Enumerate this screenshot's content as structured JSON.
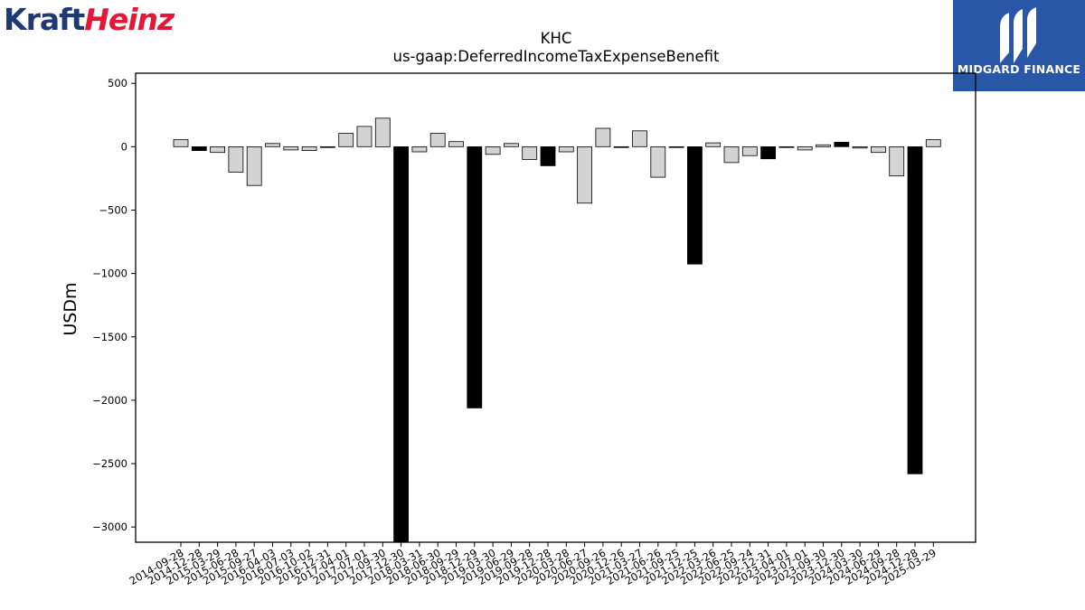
{
  "branding": {
    "company_logo_part1": "Kraft",
    "company_logo_part2": "Heinz",
    "publisher": "MIDGARD FINANCE",
    "colors": {
      "kraft_blue": "#1f3a73",
      "heinz_red": "#e31837",
      "publisher_blue": "#2a56a8"
    }
  },
  "chart_data": {
    "type": "bar",
    "title": "KHC",
    "subtitle": "us-gaap:DeferredIncomeTaxExpenseBenefit",
    "ylabel": "USDm",
    "xlabel": "",
    "ylim": [
      -3120,
      580
    ],
    "yticks": [
      500,
      0,
      -500,
      -1000,
      -1500,
      -2000,
      -2500,
      -3000
    ],
    "grid": false,
    "legend": "none",
    "categories": [
      "2014-09-28",
      "2014-12-28",
      "2015-03-29",
      "2015-06-28",
      "2015-09-27",
      "2016-04-03",
      "2016-07-03",
      "2016-10-02",
      "2016-12-31",
      "2017-04-01",
      "2017-07-01",
      "2017-09-30",
      "2017-12-30",
      "2018-03-31",
      "2018-06-30",
      "2018-09-29",
      "2018-12-29",
      "2019-03-30",
      "2019-06-29",
      "2019-09-28",
      "2019-12-28",
      "2020-03-28",
      "2020-06-27",
      "2020-09-26",
      "2020-12-26",
      "2021-03-27",
      "2021-06-26",
      "2021-09-25",
      "2021-12-25",
      "2022-03-26",
      "2022-06-25",
      "2022-09-24",
      "2022-12-31",
      "2023-04-01",
      "2023-07-01",
      "2023-09-30",
      "2023-12-30",
      "2024-03-30",
      "2024-06-29",
      "2024-09-28",
      "2024-12-28",
      "2025-03-29"
    ],
    "values": [
      55,
      -30,
      -45,
      -200,
      -305,
      25,
      -25,
      -30,
      -5,
      105,
      160,
      225,
      -3120,
      -40,
      105,
      40,
      -2060,
      -60,
      25,
      -100,
      -150,
      -40,
      -445,
      145,
      -5,
      125,
      -240,
      -5,
      -925,
      30,
      -125,
      -70,
      -95,
      -5,
      -25,
      15,
      35,
      -10,
      -45,
      -230,
      -2580,
      55
    ],
    "highlighted_categories": [
      "2014-12-28",
      "2017-12-30",
      "2018-12-29",
      "2019-12-28",
      "2021-12-25",
      "2022-12-31",
      "2023-12-30",
      "2024-12-28"
    ],
    "colors": {
      "bar_fill": "#d3d3d3",
      "highlight_fill": "#000000",
      "edge": "#000000"
    }
  }
}
